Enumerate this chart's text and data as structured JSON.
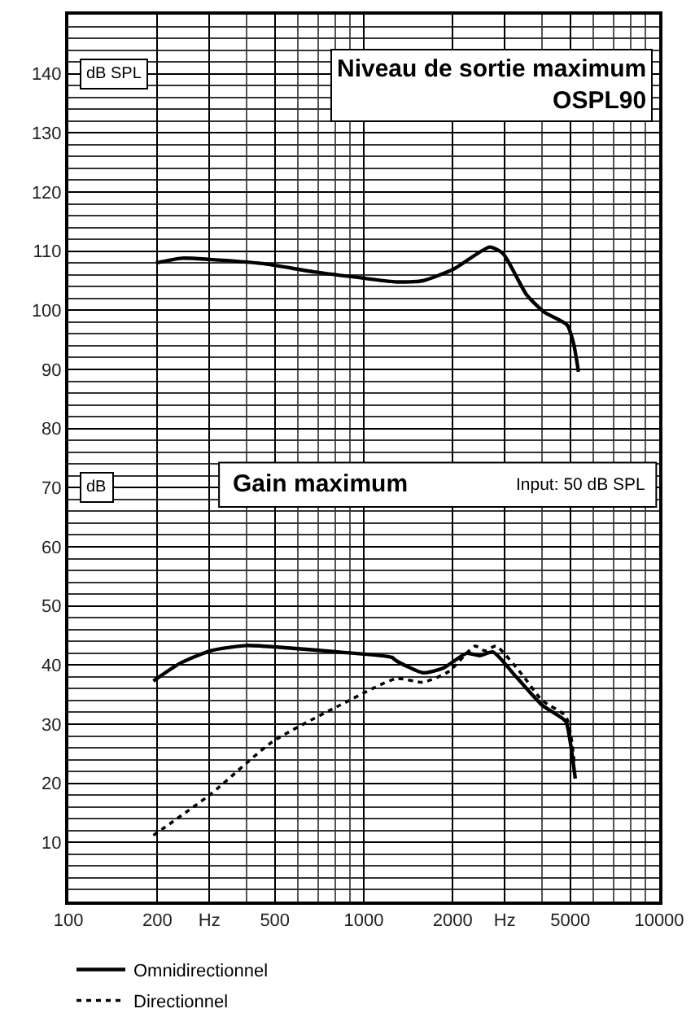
{
  "chart_data": {
    "type": "line",
    "annotations": [
      "dB SPL",
      "Niveau de sortie maximum\nOSPL90",
      "dB",
      "Gain maximum",
      "Input: 50 dB SPL"
    ],
    "series": [
      {
        "color": "#000000",
        "line_style": "solid",
        "x": [
          198,
          242,
          301,
          454,
          678,
          1012,
          1290,
          1587,
          2020,
          2670,
          2960,
          3560,
          4080,
          4880,
          5140,
          5330
        ],
        "values": [
          108.0,
          108.8,
          108.6,
          107.9,
          106.5,
          105.4,
          104.8,
          105.0,
          107.0,
          110.7,
          109.6,
          102.6,
          99.7,
          97.5,
          94.2,
          89.6
        ]
      },
      {
        "name": "Omnidirectionnel",
        "color": "#000000",
        "line_style": "solid",
        "x": [
          194,
          237,
          302,
          401,
          552,
          830,
          1245,
          1290,
          1587,
          1860,
          2230,
          2470,
          2740,
          3280,
          4020,
          4820,
          5000,
          5200
        ],
        "values": [
          37.3,
          40.2,
          42.4,
          43.3,
          42.9,
          42.2,
          41.3,
          40.7,
          38.7,
          39.5,
          42.0,
          41.6,
          42.2,
          38.0,
          33.2,
          30.5,
          27.0,
          20.8
        ]
      },
      {
        "name": "Directionnel",
        "color": "#000000",
        "line_style": "dotted",
        "x": [
          194,
          302,
          490,
          830,
          1290,
          1587,
          1940,
          2380,
          2570,
          2800,
          3420,
          4020,
          4820,
          5000,
          5160
        ],
        "values": [
          11.2,
          18.1,
          27.0,
          33.2,
          37.7,
          37.1,
          38.9,
          43.2,
          42.4,
          43.2,
          38.5,
          34.0,
          31.4,
          28.7,
          23.5
        ]
      }
    ],
    "log": "x",
    "xlim": [
      100,
      10000
    ],
    "xticks": [
      100,
      200,
      {
        "value": 300,
        "label": "Hz"
      },
      500,
      1000,
      2000,
      {
        "value": 3000,
        "label": "Hz"
      },
      5000,
      10000
    ],
    "ylim": [
      0,
      150
    ],
    "yticks": [
      10,
      20,
      30,
      40,
      50,
      60,
      70,
      80,
      90,
      100,
      110,
      120,
      130,
      140
    ],
    "grid": true,
    "legend": "bottom"
  }
}
